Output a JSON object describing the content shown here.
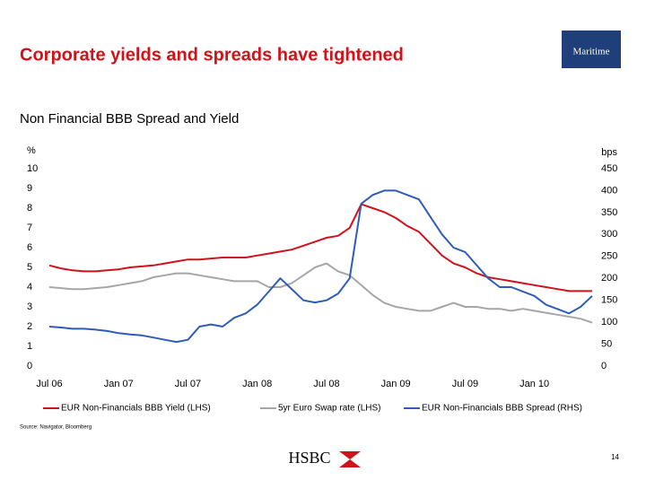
{
  "header": {
    "title": "Corporate yields and spreads have tightened",
    "logo": "Maritime"
  },
  "chart_data": {
    "type": "line",
    "title": "Non Financial BBB Spread and Yield",
    "ylabel": "%",
    "y2label": "bps",
    "categories": [
      "Jul 06",
      null,
      null,
      null,
      null,
      null,
      "Jan 07",
      null,
      null,
      null,
      null,
      null,
      "Jul 07",
      null,
      null,
      null,
      null,
      null,
      "Jan 08",
      null,
      null,
      null,
      null,
      null,
      "Jul 08",
      null,
      null,
      null,
      null,
      null,
      "Jan 09",
      null,
      null,
      null,
      null,
      null,
      "Jul 09",
      null,
      null,
      null,
      null,
      null,
      "Jan 10",
      null,
      null,
      null,
      null,
      null
    ],
    "ylim": [
      0,
      10
    ],
    "yticks": [
      0,
      1,
      2,
      3,
      4,
      5,
      6,
      7,
      8,
      9,
      10
    ],
    "y2lim": [
      0,
      450
    ],
    "y2ticks": [
      0,
      50,
      100,
      150,
      200,
      250,
      300,
      350,
      400,
      450
    ],
    "series": [
      {
        "name": "EUR Non-Financials BBB Yield (LHS)",
        "color": "#d0121b",
        "values": [
          5.1,
          4.95,
          4.85,
          4.8,
          4.8,
          4.85,
          4.9,
          5.0,
          5.05,
          5.1,
          5.2,
          5.3,
          5.4,
          5.4,
          5.45,
          5.5,
          5.5,
          5.5,
          5.6,
          5.7,
          5.8,
          5.9,
          6.1,
          6.3,
          6.5,
          6.6,
          7.0,
          8.2,
          8.0,
          7.8,
          7.5,
          7.1,
          6.8,
          6.2,
          5.6,
          5.2,
          5.0,
          4.7,
          4.5,
          4.4,
          4.3,
          4.2,
          4.1,
          4.0,
          3.9,
          3.8,
          3.8,
          3.8
        ]
      },
      {
        "name": "5yr Euro Swap rate (LHS)",
        "color": "#a6a6a6",
        "values": [
          4.0,
          3.95,
          3.9,
          3.9,
          3.95,
          4.0,
          4.1,
          4.2,
          4.3,
          4.5,
          4.6,
          4.7,
          4.7,
          4.6,
          4.5,
          4.4,
          4.3,
          4.3,
          4.3,
          4.0,
          4.0,
          4.2,
          4.6,
          5.0,
          5.2,
          4.8,
          4.6,
          4.1,
          3.6,
          3.2,
          3.0,
          2.9,
          2.8,
          2.8,
          3.0,
          3.2,
          3.0,
          3.0,
          2.9,
          2.9,
          2.8,
          2.9,
          2.8,
          2.7,
          2.6,
          2.5,
          2.4,
          2.2
        ]
      },
      {
        "name": "EUR Non-Financials BBB Spread (RHS)",
        "color": "#2e5cb8",
        "axis": "y2",
        "values": [
          90,
          88,
          85,
          85,
          83,
          80,
          75,
          72,
          70,
          65,
          60,
          55,
          60,
          90,
          95,
          90,
          110,
          120,
          140,
          170,
          200,
          175,
          150,
          145,
          150,
          165,
          200,
          370,
          390,
          400,
          400,
          390,
          380,
          340,
          300,
          270,
          260,
          230,
          200,
          180,
          180,
          170,
          160,
          140,
          130,
          120,
          135,
          160
        ]
      }
    ]
  },
  "source": "Source: Navigator, Bloomberg",
  "footer": {
    "brand": "HSBC",
    "page": 14
  }
}
